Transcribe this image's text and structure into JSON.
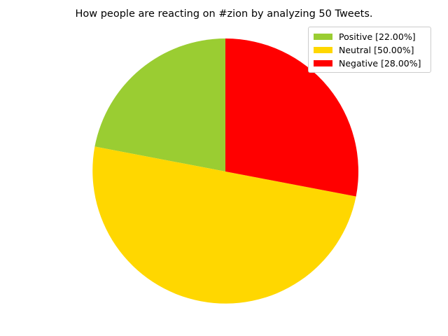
{
  "chart_data": {
    "type": "pie",
    "title": "How people are reacting on #zion by analyzing 50 Tweets.",
    "slices": [
      {
        "label": "Positive [22.00%]",
        "value": 22.0,
        "color": "#9ACD32"
      },
      {
        "label": "Neutral [50.00%]",
        "value": 50.0,
        "color": "#FFD700"
      },
      {
        "label": "Negative [28.00%]",
        "value": 28.0,
        "color": "#FF0000"
      }
    ],
    "start_angle_deg": 90,
    "direction": "counterclockwise",
    "legend_position": "top-right"
  }
}
